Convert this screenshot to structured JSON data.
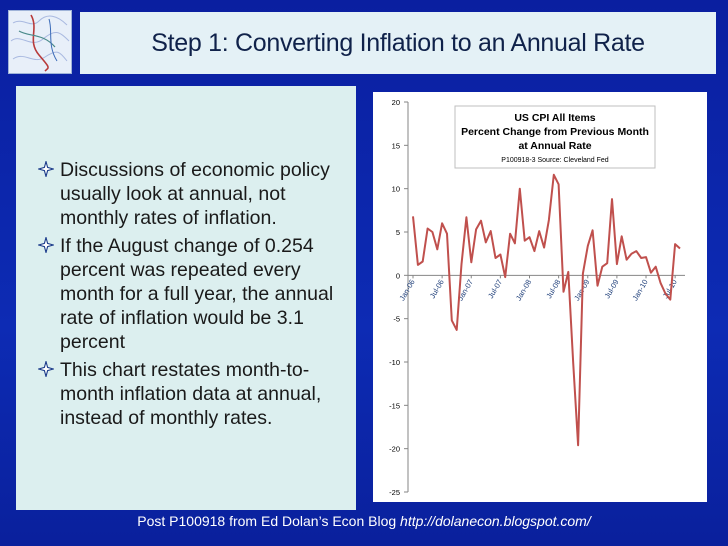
{
  "slide": {
    "title": "Step 1: Converting Inflation to an Annual Rate",
    "bullets": [
      "Discussions of economic policy usually look at annual, not monthly rates of inflation.",
      "If the August change of 0.254 percent was repeated every month for a full year, the annual rate of inflation would be 3.1 percent",
      "This chart restates month-to-month inflation data at annual, instead of monthly rates."
    ],
    "footer_text": "Post P100918 from Ed Dolan’s Econ Blog ",
    "footer_url": "http://dolanecon.blogspot.com/"
  },
  "colors": {
    "background": "#0c24a8",
    "title_bar": "#e4f1f6",
    "panel": "#dcefef",
    "series": "#c0504d",
    "bullet_icon": "#1a3a8a"
  },
  "icons": {
    "bullet": "four-point-star-outline-icon",
    "logo": "decorative-map-logo-icon"
  },
  "chart_data": {
    "type": "line",
    "title_lines": [
      "US CPI All Items",
      "Percent Change from Previous Month",
      "at Annual Rate"
    ],
    "subtitle": "P100918-3 Source: Cleveland Fed",
    "ylim": [
      -25,
      20
    ],
    "yticks": [
      20,
      15,
      10,
      5,
      0,
      -5,
      -10,
      -15,
      -20,
      -25
    ],
    "xtick_labels": [
      "Jan-06",
      "Jul-06",
      "Jan-07",
      "Jul-07",
      "Jan-08",
      "Jul-08",
      "Jan-09",
      "Jul-09",
      "Jan-10",
      "Jul-10"
    ],
    "xtick_indices": [
      0,
      6,
      12,
      18,
      24,
      30,
      36,
      42,
      48,
      54
    ],
    "grid": false,
    "legend": "none",
    "series": [
      {
        "values": [
          6.8,
          1.2,
          1.6,
          5.4,
          5.0,
          3.0,
          6.0,
          4.8,
          -5.2,
          -6.3,
          1.3,
          6.7,
          1.5,
          5.3,
          6.3,
          3.8,
          5.1,
          2.0,
          2.4,
          -0.2,
          4.8,
          3.7,
          10.0,
          4.0,
          4.4,
          2.8,
          5.1,
          3.2,
          6.4,
          11.6,
          10.5,
          -1.9,
          0.4,
          -10.1,
          -19.6,
          0.2,
          3.4,
          5.2,
          -1.2,
          1.0,
          1.4,
          8.8,
          1.3,
          4.5,
          1.8,
          2.5,
          2.8,
          2.0,
          2.1,
          0.3,
          1.0,
          -0.9,
          -2.1,
          -2.8,
          3.6,
          3.1
        ]
      }
    ]
  }
}
